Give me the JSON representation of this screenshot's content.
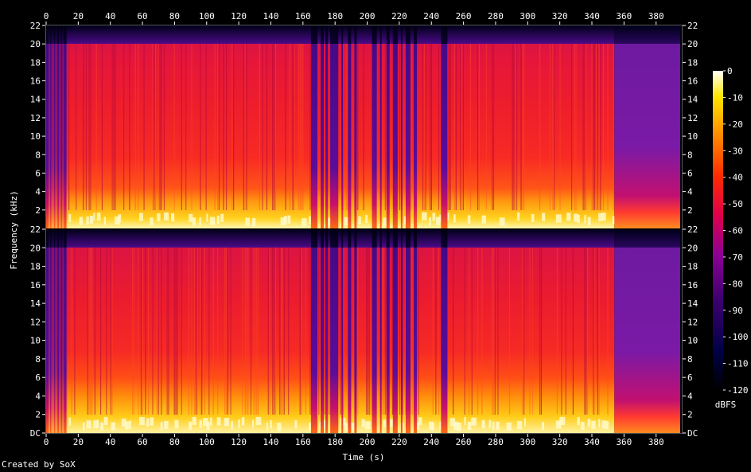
{
  "chart_data": {
    "type": "heatmap",
    "xlabel": "Time (s)",
    "ylabel": "Frequency (kHz)",
    "xlim": [
      0,
      396
    ],
    "x_ticks": [
      0,
      20,
      40,
      60,
      80,
      100,
      120,
      140,
      160,
      180,
      200,
      220,
      240,
      260,
      280,
      300,
      320,
      340,
      360,
      380
    ],
    "ylim": [
      0,
      22
    ],
    "y_ticks": [
      {
        "value": 0,
        "label": "DC"
      },
      {
        "value": 2,
        "label": "2"
      },
      {
        "value": 4,
        "label": "4"
      },
      {
        "value": 6,
        "label": "6"
      },
      {
        "value": 8,
        "label": "8"
      },
      {
        "value": 10,
        "label": "10"
      },
      {
        "value": 12,
        "label": "12"
      },
      {
        "value": 14,
        "label": "14"
      },
      {
        "value": 16,
        "label": "16"
      },
      {
        "value": 18,
        "label": "18"
      },
      {
        "value": 20,
        "label": "20"
      },
      {
        "value": 22,
        "label": "22"
      }
    ],
    "channels": [
      {
        "channel": 1,
        "position": "top"
      },
      {
        "channel": 2,
        "position": "bottom"
      }
    ],
    "bandwidth_khz": 20,
    "music_end_s": 354,
    "audio_end_s": 395,
    "colorbar": {
      "label": "dBFS",
      "range": [
        -120,
        0
      ],
      "ticks": [
        "0",
        "-10",
        "-20",
        "-30",
        "-40",
        "-50",
        "-60",
        "-70",
        "-80",
        "-90",
        "-100",
        "-110",
        "-120"
      ]
    },
    "credit": "Created by SoX"
  }
}
